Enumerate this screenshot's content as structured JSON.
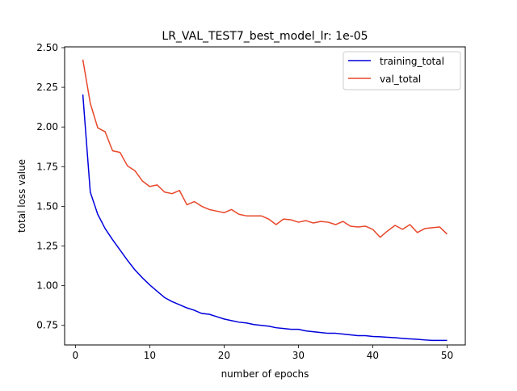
{
  "chart_data": {
    "type": "line",
    "title": "LR_VAL_TEST7_best_model_lr: 1e-05",
    "xlabel": "number of epochs",
    "ylabel": "total loss value",
    "xlim": [
      -1.45,
      52.45
    ],
    "ylim": [
      0.6265,
      2.505
    ],
    "xticks": [
      0,
      10,
      20,
      30,
      40,
      50
    ],
    "xtick_labels": [
      "0",
      "10",
      "20",
      "30",
      "40",
      "50"
    ],
    "yticks": [
      0.75,
      1.0,
      1.25,
      1.5,
      1.75,
      2.0,
      2.25,
      2.5
    ],
    "ytick_labels": [
      "0.75",
      "1.00",
      "1.25",
      "1.50",
      "1.75",
      "2.00",
      "2.25",
      "2.50"
    ],
    "grid": false,
    "legend_position": "top-right",
    "x": [
      1,
      2,
      3,
      4,
      5,
      6,
      7,
      8,
      9,
      10,
      11,
      12,
      13,
      14,
      15,
      16,
      17,
      18,
      19,
      20,
      21,
      22,
      23,
      24,
      25,
      26,
      27,
      28,
      29,
      30,
      31,
      32,
      33,
      34,
      35,
      36,
      37,
      38,
      39,
      40,
      41,
      42,
      43,
      44,
      45,
      46,
      47,
      48,
      49,
      50
    ],
    "series": [
      {
        "name": "training_total",
        "color": "#0000dd",
        "values": [
          2.205,
          1.59,
          1.45,
          1.36,
          1.29,
          1.225,
          1.16,
          1.1,
          1.05,
          1.005,
          0.965,
          0.925,
          0.9,
          0.88,
          0.86,
          0.845,
          0.825,
          0.82,
          0.805,
          0.79,
          0.78,
          0.77,
          0.765,
          0.755,
          0.75,
          0.745,
          0.735,
          0.73,
          0.725,
          0.725,
          0.715,
          0.71,
          0.705,
          0.7,
          0.7,
          0.695,
          0.69,
          0.685,
          0.685,
          0.68,
          0.678,
          0.675,
          0.672,
          0.668,
          0.665,
          0.662,
          0.658,
          0.655,
          0.655,
          0.655
        ]
      },
      {
        "name": "val_total",
        "color": "#e8472a",
        "values": [
          2.425,
          2.15,
          1.995,
          1.97,
          1.85,
          1.84,
          1.755,
          1.725,
          1.66,
          1.625,
          1.635,
          1.59,
          1.58,
          1.6,
          1.51,
          1.53,
          1.5,
          1.48,
          1.47,
          1.46,
          1.48,
          1.45,
          1.44,
          1.44,
          1.44,
          1.42,
          1.385,
          1.42,
          1.415,
          1.4,
          1.41,
          1.395,
          1.405,
          1.4,
          1.385,
          1.405,
          1.375,
          1.37,
          1.375,
          1.355,
          1.305,
          1.345,
          1.38,
          1.355,
          1.385,
          1.335,
          1.36,
          1.365,
          1.37,
          1.325
        ]
      }
    ]
  }
}
